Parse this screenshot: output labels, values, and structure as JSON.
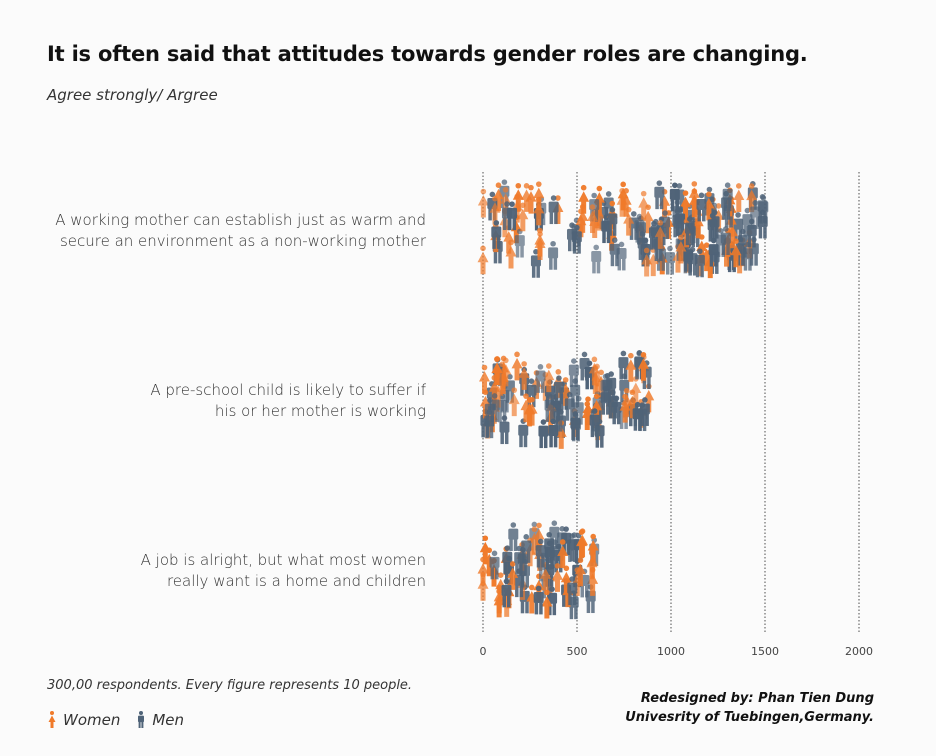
{
  "chart_data": {
    "type": "scatter",
    "title": "It is often said that attitudes towards gender roles are changing.",
    "subtitle": "Agree strongly/ Argree",
    "xlim": [
      0,
      2000
    ],
    "x_ticks": [
      "0",
      "500",
      "1000",
      "1500",
      "2000"
    ],
    "x_tick_values": [
      0,
      500,
      1000,
      1500,
      2000
    ],
    "grid": "vertical dotted",
    "categories": [
      {
        "label_lines": [
          "A working mother can establish just as warm and",
          "secure an environment as a non-working mother"
        ],
        "extent": 1550
      },
      {
        "label_lines": [
          "A pre-school child is likely to suffer if",
          "his or her mother is working"
        ],
        "extent": 950
      },
      {
        "label_lines": [
          "A job is alright, but what most women",
          "really want is a home and children"
        ],
        "extent": 650
      }
    ],
    "series": [
      {
        "name": "Women",
        "color": "#f07a2a"
      },
      {
        "name": "Men",
        "color": "#4f6378"
      }
    ]
  },
  "footnote": "300,00 respondents. Every figure represents 10 people.",
  "legend": {
    "women_label": "Women",
    "men_label": "Men",
    "women_icon": "woman-figure-icon",
    "men_icon": "man-figure-icon"
  },
  "credit": {
    "line1": "Redesigned by: Phan Tien Dung",
    "line2": "Univesrity of Tuebingen,Germany."
  }
}
